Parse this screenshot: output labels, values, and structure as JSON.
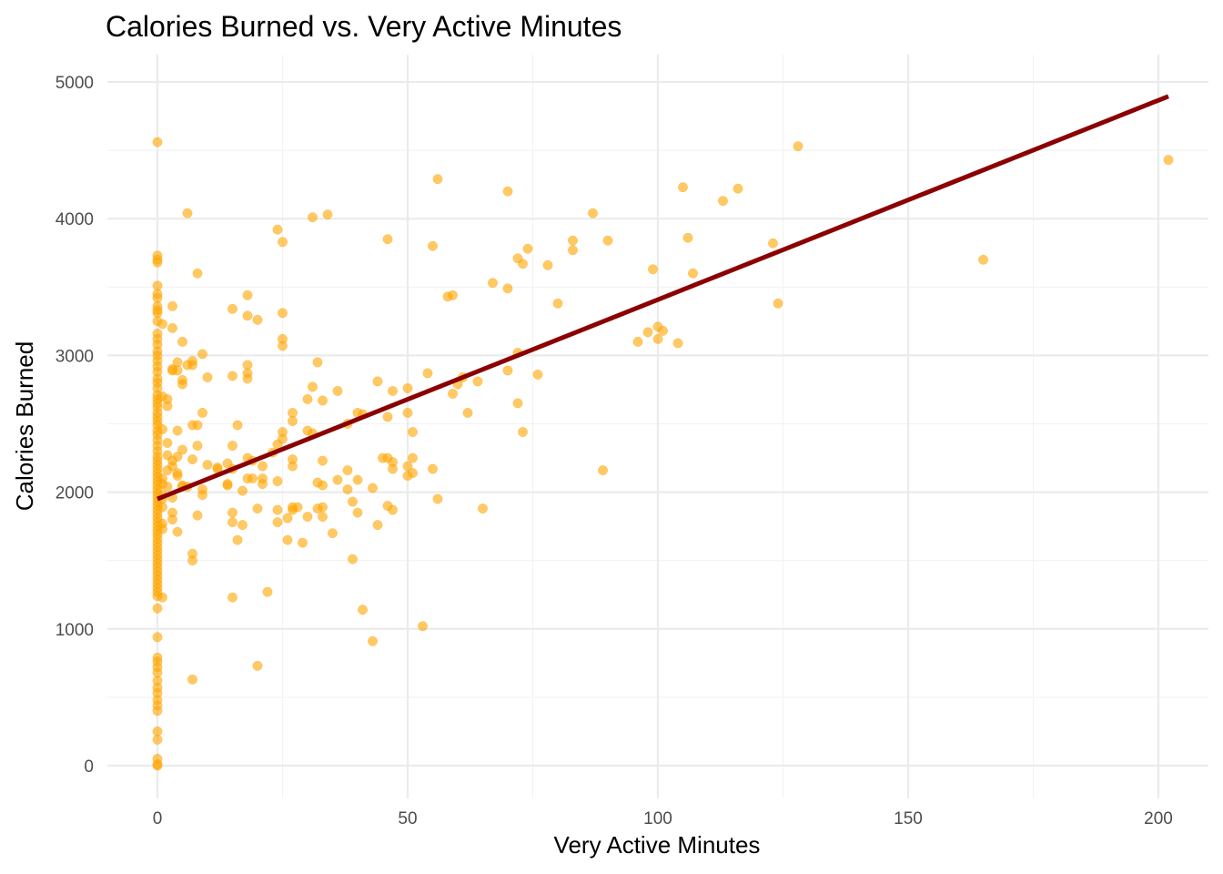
{
  "chart_data": {
    "type": "scatter",
    "title": "Calories Burned vs. Very Active Minutes",
    "xlabel": "Very Active Minutes",
    "ylabel": "Calories Burned",
    "xlim": [
      -10,
      210
    ],
    "ylim": [
      -240,
      5200
    ],
    "x_ticks": [
      0,
      50,
      100,
      150,
      200
    ],
    "y_ticks": [
      0,
      1000,
      2000,
      3000,
      4000,
      5000
    ],
    "x_tick_labels": [
      "0",
      "50",
      "100",
      "150",
      "200"
    ],
    "y_tick_labels": [
      "0",
      "1000",
      "2000",
      "3000",
      "4000",
      "5000"
    ],
    "grid": true,
    "legend": "none",
    "colors": {
      "points": "#FFA500",
      "trend_line": "#8B0000"
    },
    "trend_line": {
      "x": [
        0,
        202
      ],
      "y": [
        1950,
        4895
      ]
    },
    "points": [
      [
        0,
        4560
      ],
      [
        0,
        3730
      ],
      [
        0,
        3700
      ],
      [
        0,
        3680
      ],
      [
        0,
        3510
      ],
      [
        0,
        3450
      ],
      [
        0,
        3420
      ],
      [
        0,
        3360
      ],
      [
        0,
        3330
      ],
      [
        0,
        3310
      ],
      [
        0,
        3250
      ],
      [
        0,
        3160
      ],
      [
        0,
        3120
      ],
      [
        0,
        3080
      ],
      [
        0,
        3030
      ],
      [
        0,
        3000
      ],
      [
        0,
        2960
      ],
      [
        0,
        2920
      ],
      [
        0,
        2880
      ],
      [
        0,
        2830
      ],
      [
        0,
        2800
      ],
      [
        0,
        2760
      ],
      [
        0,
        2710
      ],
      [
        0,
        2680
      ],
      [
        0,
        2650
      ],
      [
        0,
        2620
      ],
      [
        0,
        2580
      ],
      [
        0,
        2550
      ],
      [
        0,
        2520
      ],
      [
        0,
        2490
      ],
      [
        0,
        2450
      ],
      [
        0,
        2420
      ],
      [
        0,
        2380
      ],
      [
        0,
        2340
      ],
      [
        0,
        2300
      ],
      [
        0,
        2260
      ],
      [
        0,
        2230
      ],
      [
        0,
        2200
      ],
      [
        0,
        2170
      ],
      [
        0,
        2140
      ],
      [
        0,
        2110
      ],
      [
        0,
        2080
      ],
      [
        0,
        2050
      ],
      [
        0,
        2020
      ],
      [
        0,
        1990
      ],
      [
        0,
        1960
      ],
      [
        0,
        1930
      ],
      [
        0,
        1900
      ],
      [
        0,
        1870
      ],
      [
        0,
        1840
      ],
      [
        0,
        1810
      ],
      [
        0,
        1780
      ],
      [
        0,
        1750
      ],
      [
        0,
        1720
      ],
      [
        0,
        1690
      ],
      [
        0,
        1660
      ],
      [
        0,
        1630
      ],
      [
        0,
        1600
      ],
      [
        0,
        1570
      ],
      [
        0,
        1540
      ],
      [
        0,
        1510
      ],
      [
        0,
        1480
      ],
      [
        0,
        1450
      ],
      [
        0,
        1420
      ],
      [
        0,
        1390
      ],
      [
        0,
        1360
      ],
      [
        0,
        1330
      ],
      [
        0,
        1300
      ],
      [
        0,
        1270
      ],
      [
        0,
        1240
      ],
      [
        0,
        1150
      ],
      [
        0,
        940
      ],
      [
        0,
        790
      ],
      [
        0,
        760
      ],
      [
        0,
        720
      ],
      [
        0,
        680
      ],
      [
        0,
        620
      ],
      [
        0,
        570
      ],
      [
        0,
        530
      ],
      [
        0,
        480
      ],
      [
        0,
        440
      ],
      [
        0,
        400
      ],
      [
        0,
        250
      ],
      [
        0,
        190
      ],
      [
        0,
        50
      ],
      [
        0,
        10
      ],
      [
        0,
        0
      ],
      [
        1,
        3230
      ],
      [
        1,
        2700
      ],
      [
        1,
        2460
      ],
      [
        1,
        2100
      ],
      [
        1,
        2060
      ],
      [
        1,
        1980
      ],
      [
        1,
        1950
      ],
      [
        1,
        1890
      ],
      [
        1,
        1770
      ],
      [
        1,
        1730
      ],
      [
        1,
        1230
      ],
      [
        2,
        2680
      ],
      [
        2,
        2630
      ],
      [
        2,
        2360
      ],
      [
        2,
        2270
      ],
      [
        2,
        2160
      ],
      [
        2,
        2040
      ],
      [
        3,
        3360
      ],
      [
        3,
        3200
      ],
      [
        3,
        2900
      ],
      [
        3,
        2890
      ],
      [
        3,
        2230
      ],
      [
        3,
        2190
      ],
      [
        3,
        1960
      ],
      [
        3,
        1850
      ],
      [
        3,
        1800
      ],
      [
        4,
        2950
      ],
      [
        4,
        2890
      ],
      [
        4,
        2450
      ],
      [
        4,
        2260
      ],
      [
        4,
        2140
      ],
      [
        4,
        2120
      ],
      [
        4,
        1710
      ],
      [
        5,
        3100
      ],
      [
        5,
        2820
      ],
      [
        5,
        2790
      ],
      [
        5,
        2310
      ],
      [
        5,
        2050
      ],
      [
        5,
        2040
      ],
      [
        6,
        4040
      ],
      [
        6,
        2930
      ],
      [
        6,
        2040
      ],
      [
        7,
        2960
      ],
      [
        7,
        2930
      ],
      [
        7,
        2490
      ],
      [
        7,
        2240
      ],
      [
        7,
        1550
      ],
      [
        7,
        1500
      ],
      [
        7,
        630
      ],
      [
        8,
        3600
      ],
      [
        8,
        2490
      ],
      [
        8,
        2340
      ],
      [
        8,
        1830
      ],
      [
        9,
        3010
      ],
      [
        9,
        2580
      ],
      [
        9,
        2020
      ],
      [
        9,
        1980
      ],
      [
        10,
        2840
      ],
      [
        10,
        2200
      ],
      [
        12,
        2180
      ],
      [
        12,
        2170
      ],
      [
        14,
        2210
      ],
      [
        14,
        2060
      ],
      [
        14,
        2050
      ],
      [
        15,
        3340
      ],
      [
        15,
        2850
      ],
      [
        15,
        2340
      ],
      [
        15,
        2170
      ],
      [
        15,
        1850
      ],
      [
        15,
        1780
      ],
      [
        15,
        1230
      ],
      [
        16,
        2490
      ],
      [
        16,
        1650
      ],
      [
        17,
        2010
      ],
      [
        17,
        1760
      ],
      [
        18,
        3440
      ],
      [
        18,
        3290
      ],
      [
        18,
        2930
      ],
      [
        18,
        2870
      ],
      [
        18,
        2830
      ],
      [
        18,
        2250
      ],
      [
        18,
        2100
      ],
      [
        19,
        2230
      ],
      [
        19,
        2100
      ],
      [
        20,
        3260
      ],
      [
        20,
        1880
      ],
      [
        20,
        730
      ],
      [
        21,
        2190
      ],
      [
        21,
        2100
      ],
      [
        21,
        2060
      ],
      [
        22,
        1270
      ],
      [
        23,
        2290
      ],
      [
        24,
        3920
      ],
      [
        24,
        2350
      ],
      [
        24,
        2080
      ],
      [
        24,
        1870
      ],
      [
        24,
        1780
      ],
      [
        25,
        3830
      ],
      [
        25,
        3310
      ],
      [
        25,
        3120
      ],
      [
        25,
        3070
      ],
      [
        25,
        2440
      ],
      [
        25,
        2390
      ],
      [
        26,
        1810
      ],
      [
        26,
        1650
      ],
      [
        27,
        2580
      ],
      [
        27,
        2520
      ],
      [
        27,
        2240
      ],
      [
        27,
        2190
      ],
      [
        27,
        1890
      ],
      [
        27,
        1870
      ],
      [
        28,
        1890
      ],
      [
        29,
        1630
      ],
      [
        30,
        2680
      ],
      [
        30,
        2450
      ],
      [
        30,
        1820
      ],
      [
        31,
        4010
      ],
      [
        31,
        2770
      ],
      [
        31,
        2430
      ],
      [
        32,
        2950
      ],
      [
        32,
        2070
      ],
      [
        32,
        1880
      ],
      [
        33,
        2670
      ],
      [
        33,
        2230
      ],
      [
        33,
        2050
      ],
      [
        33,
        1890
      ],
      [
        33,
        1820
      ],
      [
        34,
        4030
      ],
      [
        35,
        1700
      ],
      [
        36,
        2740
      ],
      [
        36,
        2090
      ],
      [
        38,
        2500
      ],
      [
        38,
        2160
      ],
      [
        38,
        2020
      ],
      [
        39,
        1930
      ],
      [
        39,
        1510
      ],
      [
        40,
        2580
      ],
      [
        40,
        2090
      ],
      [
        40,
        1850
      ],
      [
        41,
        2570
      ],
      [
        41,
        1140
      ],
      [
        43,
        2030
      ],
      [
        43,
        910
      ],
      [
        44,
        2810
      ],
      [
        44,
        1760
      ],
      [
        45,
        2250
      ],
      [
        46,
        3850
      ],
      [
        46,
        2550
      ],
      [
        46,
        2250
      ],
      [
        46,
        1900
      ],
      [
        47,
        2740
      ],
      [
        47,
        2220
      ],
      [
        47,
        2170
      ],
      [
        47,
        1870
      ],
      [
        50,
        2760
      ],
      [
        50,
        2580
      ],
      [
        50,
        2190
      ],
      [
        50,
        2120
      ],
      [
        51,
        2440
      ],
      [
        51,
        2250
      ],
      [
        51,
        2140
      ],
      [
        53,
        1020
      ],
      [
        54,
        2870
      ],
      [
        55,
        3800
      ],
      [
        55,
        2170
      ],
      [
        56,
        4290
      ],
      [
        56,
        1950
      ],
      [
        58,
        3430
      ],
      [
        59,
        3440
      ],
      [
        59,
        2720
      ],
      [
        60,
        2790
      ],
      [
        61,
        2840
      ],
      [
        62,
        2580
      ],
      [
        64,
        2810
      ],
      [
        65,
        1880
      ],
      [
        67,
        3530
      ],
      [
        70,
        4200
      ],
      [
        70,
        3490
      ],
      [
        70,
        2890
      ],
      [
        72,
        3710
      ],
      [
        72,
        3020
      ],
      [
        72,
        2650
      ],
      [
        73,
        3670
      ],
      [
        73,
        2440
      ],
      [
        74,
        3780
      ],
      [
        76,
        2860
      ],
      [
        78,
        3660
      ],
      [
        80,
        3380
      ],
      [
        83,
        3840
      ],
      [
        83,
        3770
      ],
      [
        87,
        4040
      ],
      [
        89,
        2160
      ],
      [
        90,
        3840
      ],
      [
        96,
        3100
      ],
      [
        98,
        3170
      ],
      [
        99,
        3630
      ],
      [
        100,
        3210
      ],
      [
        100,
        3120
      ],
      [
        101,
        3180
      ],
      [
        104,
        3090
      ],
      [
        105,
        4230
      ],
      [
        106,
        3860
      ],
      [
        107,
        3600
      ],
      [
        113,
        4130
      ],
      [
        116,
        4220
      ],
      [
        123,
        3820
      ],
      [
        124,
        3380
      ],
      [
        128,
        4530
      ],
      [
        165,
        3700
      ],
      [
        202,
        4430
      ]
    ]
  }
}
